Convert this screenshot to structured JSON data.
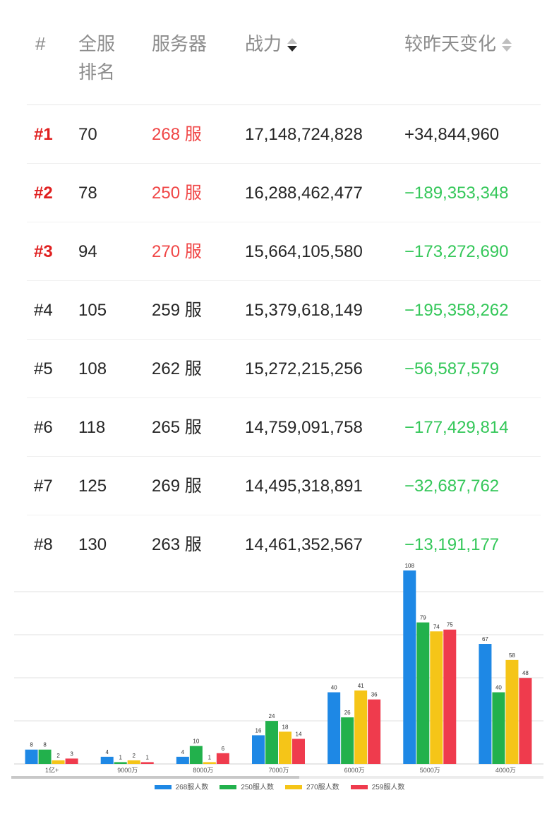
{
  "table": {
    "headers": {
      "rank": "#",
      "global_rank": "全服排名",
      "server": "服务器",
      "power": "战力",
      "change": "较昨天变化"
    },
    "rows": [
      {
        "rank": "#1",
        "global_rank": "70",
        "server": "268 服",
        "power": "17,148,724,828",
        "change": "+34,844,960",
        "top": true,
        "change_dir": "up"
      },
      {
        "rank": "#2",
        "global_rank": "78",
        "server": "250 服",
        "power": "16,288,462,477",
        "change": "−189,353,348",
        "top": true,
        "change_dir": "down"
      },
      {
        "rank": "#3",
        "global_rank": "94",
        "server": "270 服",
        "power": "15,664,105,580",
        "change": "−173,272,690",
        "top": true,
        "change_dir": "down"
      },
      {
        "rank": "#4",
        "global_rank": "105",
        "server": "259 服",
        "power": "15,379,618,149",
        "change": "−195,358,262",
        "top": false,
        "change_dir": "down"
      },
      {
        "rank": "#5",
        "global_rank": "108",
        "server": "262 服",
        "power": "15,272,215,256",
        "change": "−56,587,579",
        "top": false,
        "change_dir": "down"
      },
      {
        "rank": "#6",
        "global_rank": "118",
        "server": "265 服",
        "power": "14,759,091,758",
        "change": "−177,429,814",
        "top": false,
        "change_dir": "down"
      },
      {
        "rank": "#7",
        "global_rank": "125",
        "server": "269 服",
        "power": "14,495,318,891",
        "change": "−32,687,762",
        "top": false,
        "change_dir": "down"
      },
      {
        "rank": "#8",
        "global_rank": "130",
        "server": "263 服",
        "power": "14,461,352,567",
        "change": "−13,191,177",
        "top": false,
        "change_dir": "down"
      }
    ],
    "colors": {
      "top_rank": "#e02020",
      "top_server": "#f04646",
      "negative_change": "#34c759",
      "positive_change": "#262626"
    }
  },
  "chart_data": {
    "type": "bar",
    "categories": [
      "1亿+",
      "9000万",
      "8000万",
      "7000万",
      "6000万",
      "5000万",
      "4000万"
    ],
    "series": [
      {
        "name": "268服人数",
        "color": "#1e88e5",
        "values": [
          8,
          4,
          4,
          16,
          40,
          108,
          67
        ]
      },
      {
        "name": "250服人数",
        "color": "#22b14c",
        "values": [
          8,
          1,
          10,
          24,
          26,
          79,
          40
        ]
      },
      {
        "name": "270服人数",
        "color": "#f5c518",
        "values": [
          2,
          2,
          1,
          18,
          41,
          74,
          58
        ]
      },
      {
        "name": "259服人数",
        "color": "#ef3b4d",
        "values": [
          3,
          1,
          6,
          14,
          36,
          75,
          48
        ]
      }
    ],
    "ylim": [
      0,
      108
    ],
    "grid": true,
    "legend": "bottom"
  }
}
